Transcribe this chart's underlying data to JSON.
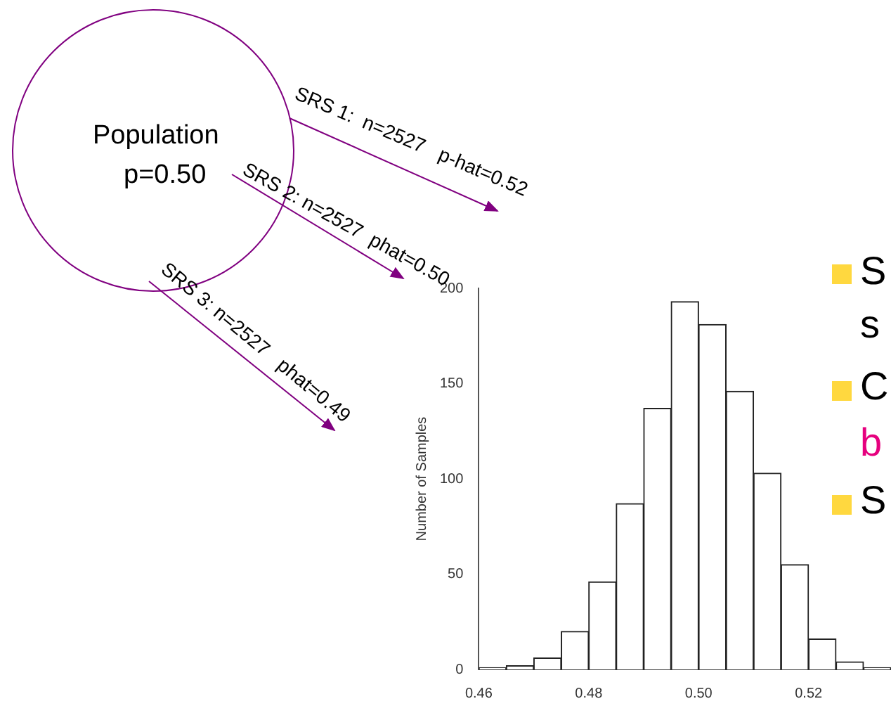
{
  "chart_data": {
    "type": "histogram",
    "ylabel": "Number of Samples",
    "bins": [
      0.46,
      0.465,
      0.47,
      0.475,
      0.48,
      0.485,
      0.49,
      0.495,
      0.5,
      0.505,
      0.51,
      0.515,
      0.52,
      0.525,
      0.53,
      0.535
    ],
    "values": [
      1,
      2,
      6,
      20,
      46,
      87,
      137,
      193,
      181,
      146,
      103,
      55,
      16,
      4,
      1
    ],
    "color": "#ffffff",
    "xlim": [
      0.46,
      0.535
    ],
    "xticks": [
      0.46,
      0.48,
      {
        "value": 0.5,
        "label": "0.50"
      },
      0.52
    ],
    "ylim": [
      0,
      200
    ],
    "yticks": [
      0,
      50,
      100,
      150,
      200
    ],
    "grid": false,
    "legend": false,
    "annotations": [
      "Population",
      "p=0.50",
      "SRS 1:  n=2527   p-hat=0.52",
      "SRS 2: n=2527  phat=0.50",
      "SRS 3: n=2527   phat=0.49",
      "S",
      "s",
      "C",
      "b",
      "S"
    ]
  }
}
